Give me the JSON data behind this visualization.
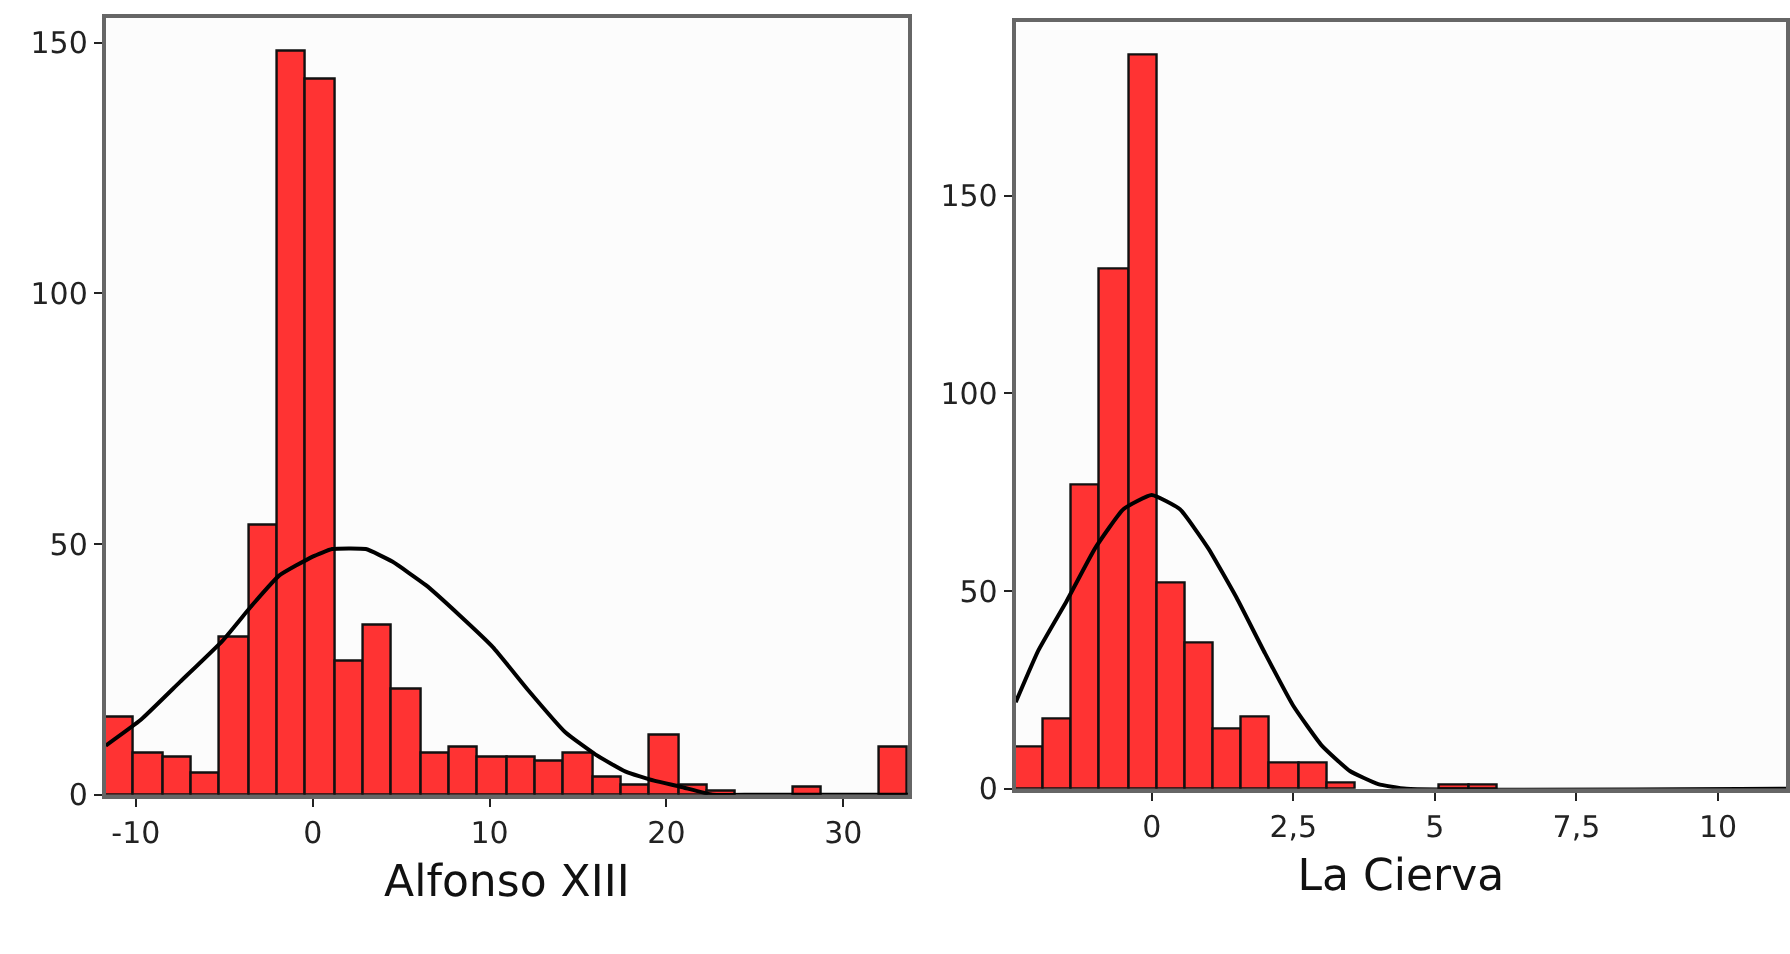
{
  "chart_data": [
    {
      "type": "histogram",
      "xlabel": "Alfonso XIII",
      "xlim": [
        -11.7,
        33.66
      ],
      "ylim": [
        0,
        155
      ],
      "xticks": [
        -10,
        0,
        10,
        20,
        30
      ],
      "yticks": [
        0,
        50,
        100,
        150
      ],
      "series": [
        {
          "color": "#ff3333",
          "bins": [
            -11.7,
            -10.08,
            -8.46,
            -6.84,
            -5.22,
            -3.6,
            -1.98,
            -0.36,
            1.26,
            2.88,
            4.5,
            6.12,
            7.74,
            9.36,
            10.98,
            12.6,
            14.22,
            15.84,
            17.46,
            19.08,
            20.7,
            22.32,
            23.94,
            25.56,
            27.18,
            28.8,
            30.42,
            32.04,
            33.66
          ],
          "values": [
            15.3,
            8.2,
            7.4,
            4.3,
            31.3,
            53.5,
            148.3,
            142.5,
            26.4,
            33.6,
            21.1,
            8.1,
            9.4,
            7.2,
            7.2,
            6.4,
            8.1,
            3.5,
            2,
            11.7,
            2,
            0.5,
            0,
            0,
            1.4,
            0,
            0,
            9.4
          ]
        },
        {
          "type": "line",
          "color": "#000000",
          "x": [
            -11.7,
            -9.7,
            -7.5,
            -5.1,
            -3.5,
            -1.9,
            0,
            1.1,
            3,
            4.5,
            6.4,
            8.3,
            10.2,
            12.2,
            14.3,
            16,
            17.7,
            19.3,
            20.8,
            22.6,
            25,
            33.66
          ],
          "values": [
            9.8,
            15,
            22.5,
            30.7,
            37.5,
            43.7,
            47.5,
            49,
            49,
            46.5,
            41.8,
            35.8,
            29.4,
            20.8,
            12.4,
            8,
            4.6,
            2.8,
            1.6,
            0,
            0,
            0
          ]
        }
      ]
    },
    {
      "type": "histogram",
      "xlabel": "La Cierva",
      "xlim": [
        -2.4,
        11.2
      ],
      "ylim": [
        0,
        194
      ],
      "xticks": [
        0,
        {
          "value": 2.5,
          "label": "2,5"
        },
        5,
        {
          "value": 7.5,
          "label": "7,5"
        },
        10
      ],
      "yticks": [
        0,
        50,
        100,
        150
      ],
      "series": [
        {
          "color": "#ff3333",
          "bins": [
            -2.4,
            -1.9,
            -1.4,
            -0.9,
            -0.4,
            0.1,
            0.6,
            1.1,
            1.6,
            2.1,
            2.6,
            3.1,
            3.6,
            4.1,
            4.6,
            5.1,
            5.6,
            6.1
          ],
          "values": [
            10.6,
            17.4,
            76.5,
            131.4,
            185.6,
            51.7,
            36.8,
            15.2,
            18.2,
            6.5,
            6.5,
            1.2,
            0,
            null,
            null,
            1,
            1
          ]
        },
        {
          "type": "line",
          "color": "#000000",
          "x": [
            -2.4,
            -2,
            -1.5,
            -1,
            -0.5,
            0,
            0.5,
            1,
            1.5,
            2,
            2.5,
            3,
            3.5,
            4,
            4.5,
            11.2
          ],
          "values": [
            21.9,
            35,
            47.5,
            60.8,
            70.7,
            74.3,
            70.7,
            60.8,
            48.3,
            34.3,
            21,
            11,
            4.5,
            1.2,
            0,
            0
          ]
        }
      ]
    }
  ]
}
